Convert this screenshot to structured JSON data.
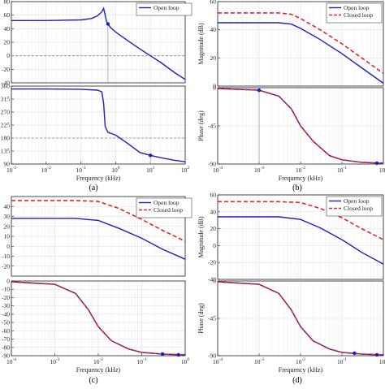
{
  "panel_captions": [
    "(a)",
    "(b)",
    "(c)",
    "(d)"
  ],
  "colors": {
    "open_loop": "#1f1fbf",
    "closed_loop": "#e0262a",
    "reference": "#888888",
    "axis": "#222222"
  },
  "chart_data": [
    {
      "id": "a-mag",
      "type": "line",
      "xscale": "log",
      "xlim": [
        0.001,
        100
      ],
      "ylim": [
        -40,
        80
      ],
      "yticks": [
        "-40",
        "-20",
        "0",
        "20",
        "40",
        "60",
        "80"
      ],
      "xlabel": "",
      "ylabel": "",
      "reference_y": 0,
      "series": [
        {
          "role": "open",
          "x": [
            0.001,
            0.01,
            0.1,
            0.2,
            0.3,
            0.4,
            0.45,
            0.5,
            0.55,
            0.6,
            0.7,
            1,
            2,
            5,
            10,
            20,
            50,
            100
          ],
          "y": [
            52,
            52,
            53,
            55,
            59,
            65,
            70,
            60,
            50,
            47,
            42,
            35,
            24,
            10,
            0,
            -10,
            -25,
            -35
          ]
        }
      ],
      "markers": [
        {
          "x": 0.6,
          "y": 47
        }
      ]
    },
    {
      "id": "a-phase",
      "type": "line",
      "xscale": "log",
      "xlim": [
        0.001,
        100
      ],
      "ylim": [
        90,
        360
      ],
      "yticks": [
        "90",
        "135",
        "180",
        "225",
        "270",
        "315",
        "360"
      ],
      "xticks": [
        "10^-3",
        "10^-2",
        "10^-1",
        "10^0",
        "10^1",
        "10^2"
      ],
      "xlabel": "Frequency (kHz)",
      "ylabel": "",
      "reference_y": 180,
      "series": [
        {
          "role": "open",
          "x": [
            0.001,
            0.01,
            0.1,
            0.3,
            0.4,
            0.45,
            0.5,
            0.6,
            1,
            2,
            5,
            10,
            20,
            50,
            100
          ],
          "y": [
            350,
            350,
            349,
            346,
            340,
            300,
            220,
            200,
            190,
            165,
            130,
            120,
            112,
            103,
            98
          ]
        }
      ],
      "markers": [
        {
          "x": 10,
          "y": 120
        }
      ],
      "legend": [
        "Open loop"
      ]
    },
    {
      "id": "b-mag",
      "type": "line",
      "xscale": "log",
      "xlim": [
        0.0001,
        1
      ],
      "ylim": [
        0,
        60
      ],
      "yticks": [
        "0",
        "20",
        "40",
        "60"
      ],
      "xlabel": "",
      "ylabel": "Magnitude (dB)",
      "series": [
        {
          "role": "open",
          "x": [
            0.0001,
            0.001,
            0.003,
            0.006,
            0.01,
            0.03,
            0.1,
            0.3,
            1
          ],
          "y": [
            45,
            45,
            45,
            44,
            41,
            33,
            23,
            13,
            2
          ]
        },
        {
          "role": "closed",
          "x": [
            0.0001,
            0.001,
            0.003,
            0.006,
            0.01,
            0.03,
            0.1,
            0.3,
            1
          ],
          "y": [
            52,
            52,
            52,
            51,
            48,
            40,
            30,
            20,
            9
          ]
        }
      ],
      "legend": [
        "Open loop",
        "Closed loop"
      ]
    },
    {
      "id": "b-phase",
      "type": "line",
      "xscale": "log",
      "xlim": [
        0.0001,
        1
      ],
      "ylim": [
        -90,
        0
      ],
      "yticks": [
        "-90",
        "-45",
        "0"
      ],
      "xticks": [
        "10^-4",
        "10^-3",
        "10^-2",
        "10^-1",
        "10^0"
      ],
      "xlabel": "Frequency (kHz)",
      "ylabel": "Phase (deg)",
      "series": [
        {
          "role": "open",
          "x": [
            0.0001,
            0.001,
            0.003,
            0.006,
            0.01,
            0.02,
            0.05,
            0.1,
            0.3,
            1
          ],
          "y": [
            -1,
            -3,
            -10,
            -25,
            -45,
            -63,
            -80,
            -85,
            -88,
            -89
          ]
        },
        {
          "role": "closed",
          "x": [
            0.0001,
            0.001,
            0.003,
            0.006,
            0.01,
            0.02,
            0.05,
            0.1,
            0.3,
            1
          ],
          "y": [
            -1,
            -3,
            -10,
            -25,
            -45,
            -63,
            -80,
            -85,
            -88,
            -89
          ]
        }
      ],
      "markers": [
        {
          "x": 0.001,
          "y": -3
        },
        {
          "x": 0.7,
          "y": -89
        }
      ]
    },
    {
      "id": "c-mag",
      "type": "line",
      "xscale": "log",
      "xlim": [
        0.0001,
        1
      ],
      "ylim": [
        -30,
        50
      ],
      "yticks": [
        "-20",
        "-10",
        "0",
        "10",
        "20",
        "30",
        "40"
      ],
      "xlabel": "",
      "ylabel": "",
      "series": [
        {
          "role": "open",
          "x": [
            0.0001,
            0.001,
            0.003,
            0.01,
            0.03,
            0.1,
            0.3,
            1
          ],
          "y": [
            28,
            28,
            28,
            26,
            18,
            8,
            -3,
            -13
          ]
        },
        {
          "role": "closed",
          "x": [
            0.0001,
            0.001,
            0.003,
            0.01,
            0.03,
            0.1,
            0.3,
            1
          ],
          "y": [
            46,
            46,
            46,
            45,
            38,
            27,
            16,
            5
          ]
        }
      ],
      "legend": [
        "Open loop",
        "Closed loop"
      ]
    },
    {
      "id": "c-phase",
      "type": "line",
      "xscale": "log",
      "xlim": [
        0.0001,
        1
      ],
      "ylim": [
        -90,
        0
      ],
      "yticks": [
        "-90",
        "-80",
        "-70",
        "-60",
        "-50",
        "-40",
        "-30",
        "-20",
        "-10",
        "0"
      ],
      "xticks": [
        "10^-4",
        "10^-3",
        "10^-2",
        "10^-1",
        "10^0"
      ],
      "xlabel": "Frequency (kHz)",
      "ylabel": "",
      "series": [
        {
          "role": "open",
          "x": [
            0.0001,
            0.001,
            0.003,
            0.006,
            0.01,
            0.02,
            0.05,
            0.1,
            0.3,
            1
          ],
          "y": [
            -1,
            -4,
            -15,
            -35,
            -55,
            -72,
            -82,
            -86,
            -88,
            -89
          ]
        },
        {
          "role": "closed",
          "x": [
            0.0001,
            0.001,
            0.003,
            0.006,
            0.01,
            0.02,
            0.05,
            0.1,
            0.3,
            1
          ],
          "y": [
            -1,
            -4,
            -15,
            -35,
            -55,
            -72,
            -82,
            -86,
            -88,
            -89
          ]
        }
      ],
      "markers": [
        {
          "x": 0.3,
          "y": -88
        },
        {
          "x": 0.7,
          "y": -89
        }
      ]
    },
    {
      "id": "d-mag",
      "type": "line",
      "xscale": "log",
      "xlim": [
        0.0001,
        1
      ],
      "ylim": [
        -40,
        60
      ],
      "yticks": [
        "-40",
        "-20",
        "0",
        "20",
        "40",
        "60"
      ],
      "xlabel": "",
      "ylabel": "Magnitude (dB)",
      "series": [
        {
          "role": "open",
          "x": [
            0.0001,
            0.001,
            0.003,
            0.01,
            0.03,
            0.1,
            0.3,
            1
          ],
          "y": [
            34,
            34,
            34,
            31,
            21,
            7,
            -8,
            -22
          ]
        },
        {
          "role": "closed",
          "x": [
            0.0001,
            0.001,
            0.003,
            0.01,
            0.03,
            0.1,
            0.3,
            1
          ],
          "y": [
            52,
            52,
            52,
            51,
            44,
            33,
            20,
            7
          ]
        }
      ],
      "legend": [
        "Open loop",
        "Closed loop"
      ]
    },
    {
      "id": "d-phase",
      "type": "line",
      "xscale": "log",
      "xlim": [
        0.0001,
        1
      ],
      "ylim": [
        -90,
        0
      ],
      "yticks": [
        "-90",
        "-45",
        "0"
      ],
      "xticks": [
        "10^-4",
        "10^-3",
        "10^-2",
        "10^-1",
        "10^0"
      ],
      "xlabel": "Frequency (kHz)",
      "ylabel": "Phase (deg)",
      "series": [
        {
          "role": "open",
          "x": [
            0.0001,
            0.001,
            0.003,
            0.006,
            0.01,
            0.02,
            0.05,
            0.1,
            0.3,
            1
          ],
          "y": [
            -1,
            -4,
            -15,
            -35,
            -55,
            -72,
            -82,
            -86,
            -88,
            -89
          ]
        },
        {
          "role": "closed",
          "x": [
            0.0001,
            0.001,
            0.003,
            0.006,
            0.01,
            0.02,
            0.05,
            0.1,
            0.3,
            1
          ],
          "y": [
            -1,
            -4,
            -15,
            -35,
            -55,
            -72,
            -82,
            -86,
            -88,
            -89
          ]
        }
      ],
      "markers": [
        {
          "x": 0.2,
          "y": -87
        },
        {
          "x": 0.7,
          "y": -89
        }
      ]
    }
  ]
}
